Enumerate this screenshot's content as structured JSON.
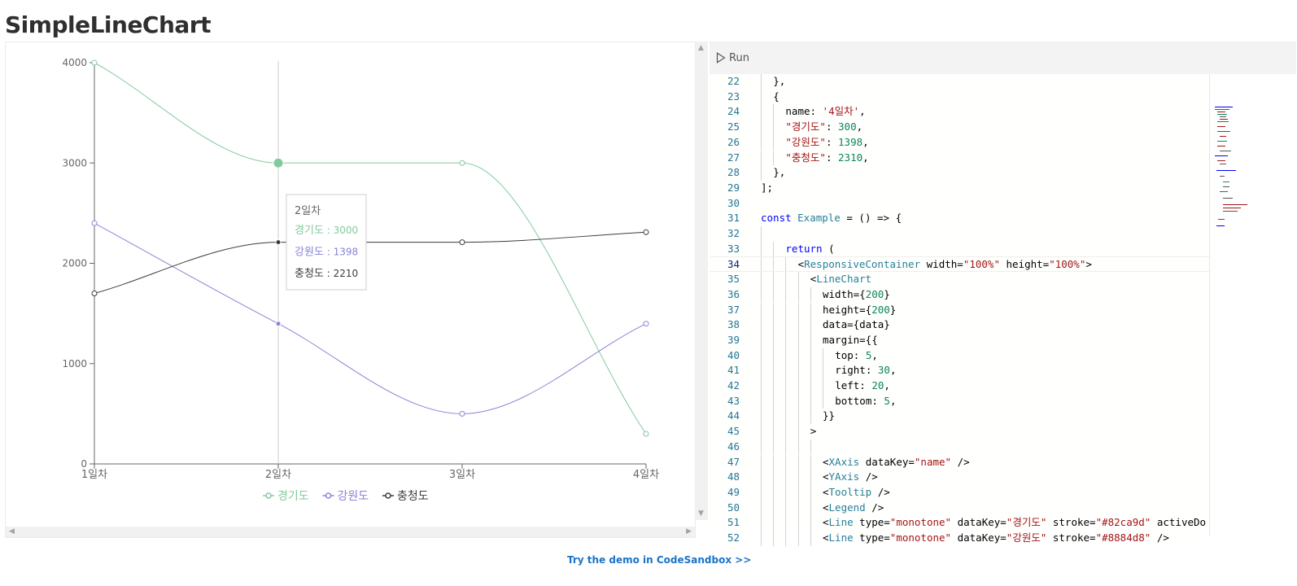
{
  "page": {
    "title": "SimpleLineChart"
  },
  "chart_data": {
    "type": "line",
    "categories": [
      "1일차",
      "2일차",
      "3일차",
      "4일차"
    ],
    "series": [
      {
        "name": "경기도",
        "values": [
          4000,
          3000,
          3000,
          300
        ],
        "color": "#82ca9d"
      },
      {
        "name": "강원도",
        "values": [
          2400,
          1398,
          500,
          1398
        ],
        "color": "#8884d8"
      },
      {
        "name": "충청도",
        "values": [
          1700,
          2210,
          2210,
          2310
        ],
        "color": "#3c3c3c"
      }
    ],
    "ylim": [
      0,
      4000
    ],
    "yticks": [
      "0",
      "1000",
      "2000",
      "3000",
      "4000"
    ],
    "active_index": 1,
    "legend": "bottom-center",
    "grid": false,
    "tooltip": {
      "label": "2일차",
      "rows": [
        {
          "name": "경기도",
          "sep": " : ",
          "value": "3000",
          "color": "#82ca9d"
        },
        {
          "name": "강원도",
          "sep": " : ",
          "value": "1398",
          "color": "#8884d8"
        },
        {
          "name": "충청도",
          "sep": " : ",
          "value": "2210",
          "color": "#3c3c3c"
        }
      ]
    }
  },
  "editor": {
    "run_label": "Run",
    "active_line": "34",
    "lines": [
      {
        "n": "22",
        "indent": 1,
        "parts": [
          [
            "p",
            "},"
          ]
        ]
      },
      {
        "n": "23",
        "indent": 1,
        "parts": [
          [
            "p",
            "{"
          ]
        ]
      },
      {
        "n": "24",
        "indent": 2,
        "parts": [
          [
            "p",
            "name: "
          ],
          [
            "s",
            "'4일차'"
          ],
          [
            "p",
            ","
          ]
        ]
      },
      {
        "n": "25",
        "indent": 2,
        "parts": [
          [
            "s",
            "\"경기도\""
          ],
          [
            "p",
            ": "
          ],
          [
            "n",
            "300"
          ],
          [
            "p",
            ","
          ]
        ]
      },
      {
        "n": "26",
        "indent": 2,
        "parts": [
          [
            "s",
            "\"강원도\""
          ],
          [
            "p",
            ": "
          ],
          [
            "n",
            "1398"
          ],
          [
            "p",
            ","
          ]
        ]
      },
      {
        "n": "27",
        "indent": 2,
        "parts": [
          [
            "s",
            "\"충청도\""
          ],
          [
            "p",
            ": "
          ],
          [
            "n",
            "2310"
          ],
          [
            "p",
            ","
          ]
        ]
      },
      {
        "n": "28",
        "indent": 1,
        "parts": [
          [
            "p",
            "},"
          ]
        ]
      },
      {
        "n": "29",
        "indent": 0,
        "parts": [
          [
            "p",
            "];"
          ]
        ]
      },
      {
        "n": "30",
        "indent": 0,
        "parts": []
      },
      {
        "n": "31",
        "indent": 0,
        "parts": [
          [
            "k",
            "const "
          ],
          [
            "t",
            "Example"
          ],
          [
            "p",
            " = () => {"
          ]
        ]
      },
      {
        "n": "32",
        "indent": 1,
        "parts": []
      },
      {
        "n": "33",
        "indent": 2,
        "parts": [
          [
            "k",
            "return"
          ],
          [
            "p",
            " ("
          ]
        ]
      },
      {
        "n": "34",
        "indent": 3,
        "parts": [
          [
            "p",
            "<"
          ],
          [
            "t",
            "ResponsiveContainer"
          ],
          [
            "p",
            " width="
          ],
          [
            "s",
            "\"100%\""
          ],
          [
            "p",
            " height="
          ],
          [
            "s",
            "\"100%\""
          ],
          [
            "p",
            ">"
          ]
        ]
      },
      {
        "n": "35",
        "indent": 4,
        "parts": [
          [
            "p",
            "<"
          ],
          [
            "t",
            "LineChart"
          ]
        ]
      },
      {
        "n": "36",
        "indent": 5,
        "parts": [
          [
            "p",
            "width={"
          ],
          [
            "n",
            "200"
          ],
          [
            "p",
            "}"
          ]
        ]
      },
      {
        "n": "37",
        "indent": 5,
        "parts": [
          [
            "p",
            "height={"
          ],
          [
            "n",
            "200"
          ],
          [
            "p",
            "}"
          ]
        ]
      },
      {
        "n": "38",
        "indent": 5,
        "parts": [
          [
            "p",
            "data={data}"
          ]
        ]
      },
      {
        "n": "39",
        "indent": 5,
        "parts": [
          [
            "p",
            "margin={{"
          ]
        ]
      },
      {
        "n": "40",
        "indent": 6,
        "parts": [
          [
            "p",
            "top: "
          ],
          [
            "n",
            "5"
          ],
          [
            "p",
            ","
          ]
        ]
      },
      {
        "n": "41",
        "indent": 6,
        "parts": [
          [
            "p",
            "right: "
          ],
          [
            "n",
            "30"
          ],
          [
            "p",
            ","
          ]
        ]
      },
      {
        "n": "42",
        "indent": 6,
        "parts": [
          [
            "p",
            "left: "
          ],
          [
            "n",
            "20"
          ],
          [
            "p",
            ","
          ]
        ]
      },
      {
        "n": "43",
        "indent": 6,
        "parts": [
          [
            "p",
            "bottom: "
          ],
          [
            "n",
            "5"
          ],
          [
            "p",
            ","
          ]
        ]
      },
      {
        "n": "44",
        "indent": 5,
        "parts": [
          [
            "p",
            "}}"
          ]
        ]
      },
      {
        "n": "45",
        "indent": 4,
        "parts": [
          [
            "p",
            ">"
          ]
        ]
      },
      {
        "n": "46",
        "indent": 5,
        "parts": []
      },
      {
        "n": "47",
        "indent": 5,
        "parts": [
          [
            "p",
            "<"
          ],
          [
            "t",
            "XAxis"
          ],
          [
            "p",
            " dataKey="
          ],
          [
            "s",
            "\"name\""
          ],
          [
            "p",
            " />"
          ]
        ]
      },
      {
        "n": "48",
        "indent": 5,
        "parts": [
          [
            "p",
            "<"
          ],
          [
            "t",
            "YAxis"
          ],
          [
            "p",
            " />"
          ]
        ]
      },
      {
        "n": "49",
        "indent": 5,
        "parts": [
          [
            "p",
            "<"
          ],
          [
            "t",
            "Tooltip"
          ],
          [
            "p",
            " />"
          ]
        ]
      },
      {
        "n": "50",
        "indent": 5,
        "parts": [
          [
            "p",
            "<"
          ],
          [
            "t",
            "Legend"
          ],
          [
            "p",
            " />"
          ]
        ]
      },
      {
        "n": "51",
        "indent": 5,
        "parts": [
          [
            "p",
            "<"
          ],
          [
            "t",
            "Line"
          ],
          [
            "p",
            " type="
          ],
          [
            "s",
            "\"monotone\""
          ],
          [
            "p",
            " dataKey="
          ],
          [
            "s",
            "\"경기도\""
          ],
          [
            "p",
            " stroke="
          ],
          [
            "s",
            "\"#82ca9d\""
          ],
          [
            "p",
            " activeDo"
          ]
        ]
      },
      {
        "n": "52",
        "indent": 5,
        "parts": [
          [
            "p",
            "<"
          ],
          [
            "t",
            "Line"
          ],
          [
            "p",
            " type="
          ],
          [
            "s",
            "\"monotone\""
          ],
          [
            "p",
            " dataKey="
          ],
          [
            "s",
            "\"강원도\""
          ],
          [
            "p",
            " stroke="
          ],
          [
            "s",
            "\"#8884d8\""
          ],
          [
            "p",
            " />"
          ]
        ]
      }
    ]
  },
  "footer": {
    "link_label": "Try the demo in CodeSandbox >>"
  }
}
